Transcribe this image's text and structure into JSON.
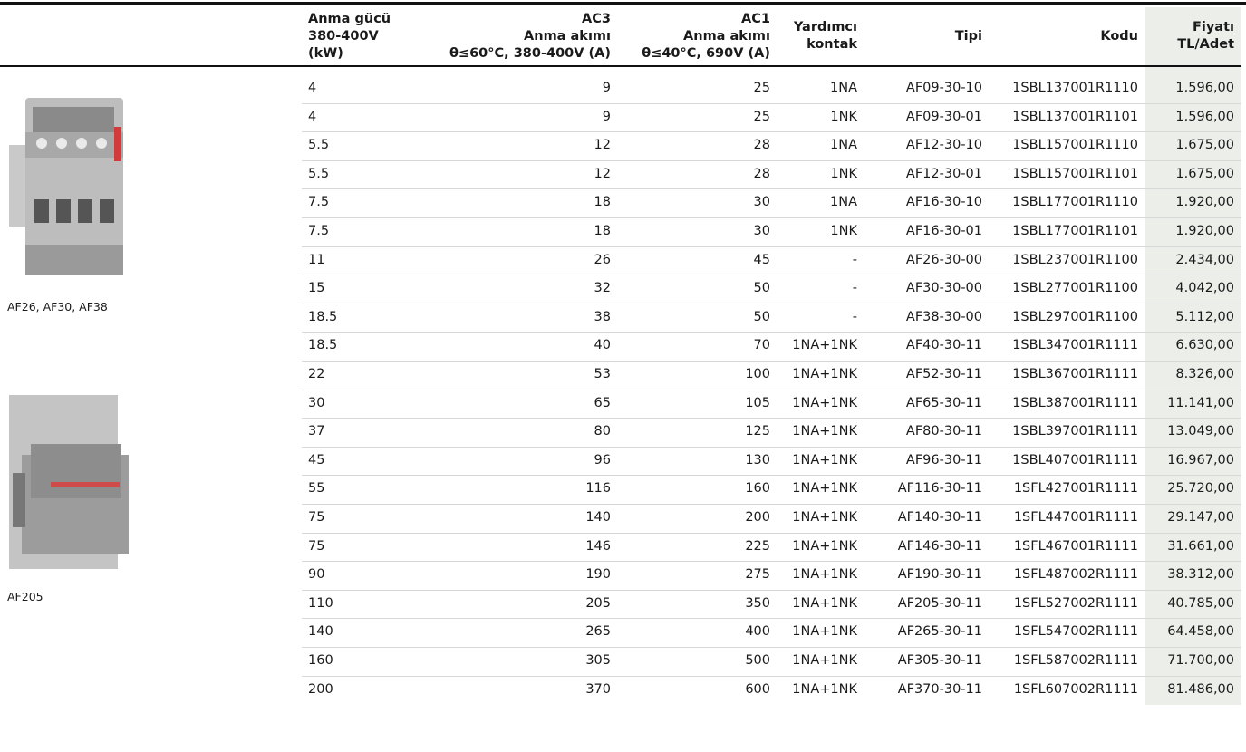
{
  "header": {
    "columns": [
      [
        "Anma gücü",
        "380-400V",
        "(kW)"
      ],
      [
        "AC3",
        "Anma akımı",
        "θ≤60°C, 380-400V (A)"
      ],
      [
        "AC1",
        "Anma akımı",
        "θ≤40°C, 690V (A)"
      ],
      [
        "Yardımcı",
        "kontak"
      ],
      [
        "Tipi"
      ],
      [
        "Kodu"
      ],
      [
        "Fiyatı",
        "TL/Adet"
      ]
    ]
  },
  "images": [
    {
      "caption": "AF26, AF30, AF38"
    },
    {
      "caption": "AF205"
    }
  ],
  "table": {
    "rows": [
      [
        "4",
        "9",
        "25",
        "1NA",
        "AF09-30-10",
        "1SBL137001R1110",
        "1.596,00"
      ],
      [
        "4",
        "9",
        "25",
        "1NK",
        "AF09-30-01",
        "1SBL137001R1101",
        "1.596,00"
      ],
      [
        "5.5",
        "12",
        "28",
        "1NA",
        "AF12-30-10",
        "1SBL157001R1110",
        "1.675,00"
      ],
      [
        "5.5",
        "12",
        "28",
        "1NK",
        "AF12-30-01",
        "1SBL157001R1101",
        "1.675,00"
      ],
      [
        "7.5",
        "18",
        "30",
        "1NA",
        "AF16-30-10",
        "1SBL177001R1110",
        "1.920,00"
      ],
      [
        "7.5",
        "18",
        "30",
        "1NK",
        "AF16-30-01",
        "1SBL177001R1101",
        "1.920,00"
      ],
      [
        "11",
        "26",
        "45",
        "-",
        "AF26-30-00",
        "1SBL237001R1100",
        "2.434,00"
      ],
      [
        "15",
        "32",
        "50",
        "-",
        "AF30-30-00",
        "1SBL277001R1100",
        "4.042,00"
      ],
      [
        "18.5",
        "38",
        "50",
        "-",
        "AF38-30-00",
        "1SBL297001R1100",
        "5.112,00"
      ],
      [
        "18.5",
        "40",
        "70",
        "1NA+1NK",
        "AF40-30-11",
        "1SBL347001R1111",
        "6.630,00"
      ],
      [
        "22",
        "53",
        "100",
        "1NA+1NK",
        "AF52-30-11",
        "1SBL367001R1111",
        "8.326,00"
      ],
      [
        "30",
        "65",
        "105",
        "1NA+1NK",
        "AF65-30-11",
        "1SBL387001R1111",
        "11.141,00"
      ],
      [
        "37",
        "80",
        "125",
        "1NA+1NK",
        "AF80-30-11",
        "1SBL397001R1111",
        "13.049,00"
      ],
      [
        "45",
        "96",
        "130",
        "1NA+1NK",
        "AF96-30-11",
        "1SBL407001R1111",
        "16.967,00"
      ],
      [
        "55",
        "116",
        "160",
        "1NA+1NK",
        "AF116-30-11",
        "1SFL427001R1111",
        "25.720,00"
      ],
      [
        "75",
        "140",
        "200",
        "1NA+1NK",
        "AF140-30-11",
        "1SFL447001R1111",
        "29.147,00"
      ],
      [
        "75",
        "146",
        "225",
        "1NA+1NK",
        "AF146-30-11",
        "1SFL467001R1111",
        "31.661,00"
      ],
      [
        "90",
        "190",
        "275",
        "1NA+1NK",
        "AF190-30-11",
        "1SFL487002R1111",
        "38.312,00"
      ],
      [
        "110",
        "205",
        "350",
        "1NA+1NK",
        "AF205-30-11",
        "1SFL527002R1111",
        "40.785,00"
      ],
      [
        "140",
        "265",
        "400",
        "1NA+1NK",
        "AF265-30-11",
        "1SFL547002R1111",
        "64.458,00"
      ],
      [
        "160",
        "305",
        "500",
        "1NA+1NK",
        "AF305-30-11",
        "1SFL587002R1111",
        "71.700,00"
      ],
      [
        "200",
        "370",
        "600",
        "1NA+1NK",
        "AF370-30-11",
        "1SFL607002R1111",
        "81.486,00"
      ]
    ]
  }
}
